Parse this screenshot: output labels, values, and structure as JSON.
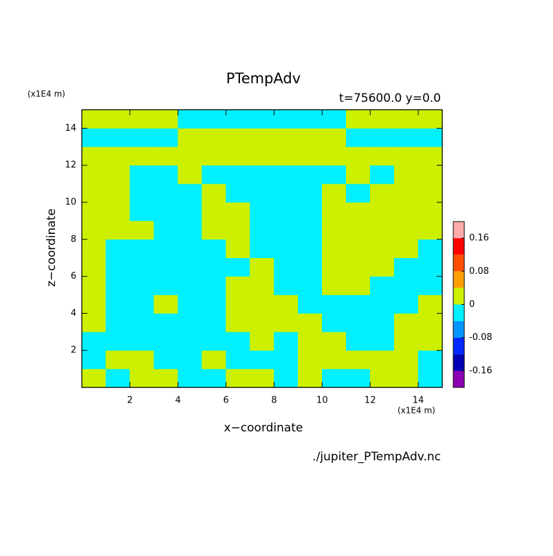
{
  "chart_data": {
    "type": "contour",
    "title": "PTempAdv",
    "subtitle": "t=75600.0 y=0.0",
    "x_label": "x−coordinate",
    "y_label": "z−coordinate",
    "x_unit": "(x1E4 m)",
    "y_unit": "(x1E4 m)",
    "source": "./jupiter_PTempAdv.nc",
    "xlim": [
      0,
      15
    ],
    "ylim": [
      0,
      15
    ],
    "xticks": [
      2,
      4,
      6,
      8,
      10,
      12,
      14
    ],
    "yticks": [
      2,
      4,
      6,
      8,
      10,
      12,
      14
    ],
    "x": [
      0.5,
      1.5,
      2.5,
      3.5,
      4.5,
      5.5,
      6.5,
      7.5,
      8.5,
      9.5,
      10.5,
      11.5,
      12.5,
      13.5,
      14.5
    ],
    "y": [
      0.5,
      1.5,
      2.5,
      3.5,
      4.5,
      5.5,
      6.5,
      7.5,
      8.5,
      9.5,
      10.5,
      11.5,
      12.5,
      13.5,
      14.5
    ],
    "z": [
      [
        0.02,
        -0.02,
        0.02,
        0.02,
        -0.02,
        -0.02,
        0.02,
        0.02,
        -0.02,
        0.02,
        -0.02,
        -0.02,
        0.02,
        0.02,
        -0.02
      ],
      [
        -0.02,
        0.02,
        0.02,
        -0.02,
        -0.02,
        0.02,
        -0.02,
        -0.02,
        -0.02,
        0.02,
        0.02,
        0.02,
        0.02,
        0.02,
        -0.02
      ],
      [
        -0.02,
        -0.02,
        -0.02,
        -0.02,
        -0.02,
        -0.02,
        -0.02,
        0.02,
        -0.02,
        0.02,
        0.02,
        -0.02,
        -0.02,
        0.02,
        0.02
      ],
      [
        0.02,
        -0.02,
        -0.02,
        -0.02,
        -0.02,
        -0.02,
        0.02,
        0.02,
        0.02,
        0.02,
        -0.02,
        -0.02,
        -0.02,
        0.02,
        0.02
      ],
      [
        0.02,
        -0.02,
        -0.02,
        0.02,
        -0.02,
        -0.02,
        0.02,
        0.02,
        0.02,
        -0.02,
        -0.02,
        -0.02,
        -0.02,
        -0.02,
        0.02
      ],
      [
        0.02,
        -0.02,
        -0.02,
        -0.02,
        -0.02,
        -0.02,
        0.02,
        0.02,
        -0.02,
        -0.02,
        0.02,
        0.02,
        -0.02,
        -0.02,
        -0.02
      ],
      [
        0.02,
        -0.02,
        -0.02,
        -0.02,
        -0.02,
        -0.02,
        -0.02,
        0.02,
        -0.02,
        -0.02,
        0.02,
        0.02,
        0.02,
        -0.02,
        -0.02
      ],
      [
        0.02,
        -0.02,
        -0.02,
        -0.02,
        -0.02,
        -0.02,
        0.02,
        -0.02,
        -0.02,
        -0.02,
        0.02,
        0.02,
        0.02,
        0.02,
        -0.02
      ],
      [
        0.02,
        0.02,
        0.02,
        -0.02,
        -0.02,
        0.02,
        0.02,
        -0.02,
        -0.02,
        -0.02,
        0.02,
        0.02,
        0.02,
        0.02,
        0.02
      ],
      [
        0.02,
        0.02,
        -0.02,
        -0.02,
        -0.02,
        0.02,
        0.02,
        -0.02,
        -0.02,
        -0.02,
        0.02,
        0.02,
        0.02,
        0.02,
        0.02
      ],
      [
        0.02,
        0.02,
        -0.02,
        -0.02,
        -0.02,
        0.02,
        -0.02,
        -0.02,
        -0.02,
        -0.02,
        0.02,
        -0.02,
        0.02,
        0.02,
        0.02
      ],
      [
        0.02,
        0.02,
        -0.02,
        -0.02,
        0.02,
        -0.02,
        -0.02,
        -0.02,
        -0.02,
        -0.02,
        -0.02,
        0.02,
        -0.02,
        0.02,
        0.02
      ],
      [
        0.02,
        0.02,
        0.02,
        0.02,
        0.02,
        0.02,
        0.02,
        0.02,
        0.02,
        0.02,
        0.02,
        0.02,
        0.02,
        0.02,
        0.02
      ],
      [
        -0.02,
        -0.02,
        -0.02,
        -0.02,
        0.02,
        0.02,
        0.02,
        0.02,
        0.02,
        0.02,
        0.02,
        -0.02,
        -0.02,
        -0.02,
        -0.02
      ],
      [
        0.02,
        0.02,
        0.02,
        0.02,
        -0.02,
        -0.02,
        -0.02,
        -0.02,
        -0.02,
        -0.02,
        -0.02,
        0.02,
        0.02,
        0.02,
        0.02
      ]
    ],
    "levels": [
      -0.2,
      -0.16,
      -0.12,
      -0.08,
      -0.04,
      0,
      0.04,
      0.08,
      0.12,
      0.16,
      0.2
    ],
    "colors": [
      "#8c00b4",
      "#0000b4",
      "#0028ff",
      "#0096ff",
      "#00f0ff",
      "#ccf000",
      "#ffa000",
      "#ff5000",
      "#ff0000",
      "#ffaaaa"
    ],
    "colorbar_ticks": [
      -0.16,
      -0.08,
      0,
      0.08,
      0.16
    ]
  }
}
